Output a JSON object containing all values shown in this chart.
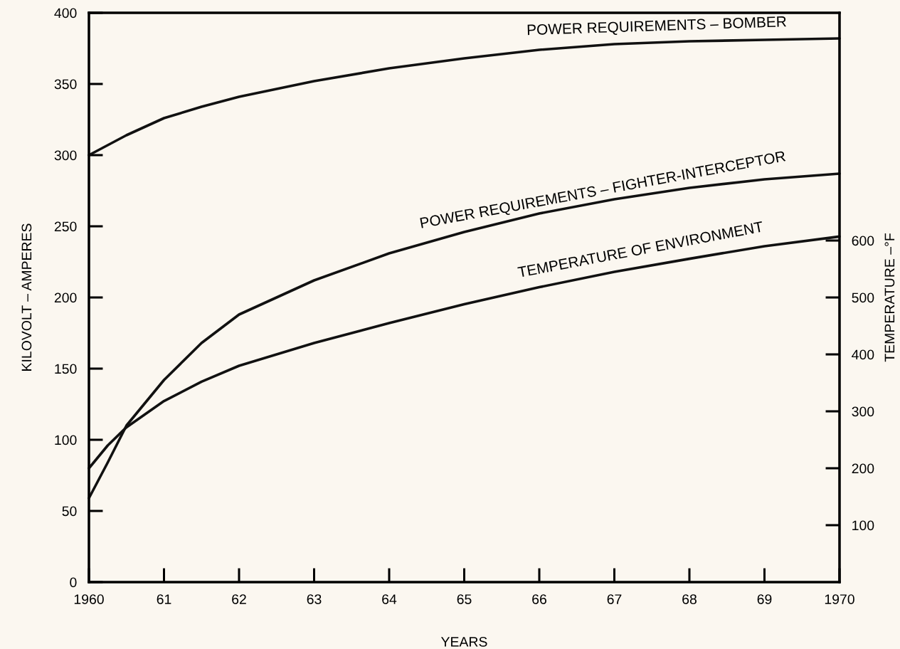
{
  "chart_data": {
    "type": "line",
    "xlabel": "YEARS",
    "ylabel": "KILOVOLT – AMPERES",
    "y2label": "TEMPERATURE –°F",
    "x": [
      1960,
      1960.25,
      1960.5,
      1961,
      1961.5,
      1962,
      1963,
      1964,
      1965,
      1966,
      1967,
      1968,
      1969,
      1970
    ],
    "xlim": [
      1960,
      1970
    ],
    "xticks": [
      {
        "value": 1960,
        "label": "1960"
      },
      {
        "value": 1961,
        "label": "61"
      },
      {
        "value": 1962,
        "label": "62"
      },
      {
        "value": 1963,
        "label": "63"
      },
      {
        "value": 1964,
        "label": "64"
      },
      {
        "value": 1965,
        "label": "65"
      },
      {
        "value": 1966,
        "label": "66"
      },
      {
        "value": 1967,
        "label": "67"
      },
      {
        "value": 1968,
        "label": "68"
      },
      {
        "value": 1969,
        "label": "69"
      },
      {
        "value": 1970,
        "label": "1970"
      }
    ],
    "ylim": [
      0,
      400
    ],
    "yticks": [
      0,
      50,
      100,
      150,
      200,
      250,
      300,
      350,
      400
    ],
    "y2lim": [
      0,
      1000
    ],
    "y2ticks": [
      100,
      200,
      300,
      400,
      500,
      600
    ],
    "grid": false,
    "legend": false,
    "marker": "none",
    "line_style": "solid",
    "series": [
      {
        "name": "POWER REQUIREMENTS – BOMBER",
        "color": "#111111",
        "values": [
          300,
          307,
          314,
          326,
          334,
          341,
          352,
          361,
          368,
          374,
          378,
          380,
          381,
          382
        ]
      },
      {
        "name": "POWER REQUIREMENTS – FIGHTER-INTERCEPTOR",
        "color": "#111111",
        "values": [
          59,
          84,
          110,
          142,
          168,
          188,
          212,
          231,
          246,
          259,
          269,
          277,
          283,
          287
        ]
      },
      {
        "name": "TEMPERATURE OF ENVIRONMENT",
        "color": "#111111",
        "axis": "y2",
        "values": [
          200,
          240,
          272,
          318,
          352,
          380,
          420,
          455,
          488,
          518,
          545,
          568,
          590,
          607
        ]
      }
    ]
  }
}
